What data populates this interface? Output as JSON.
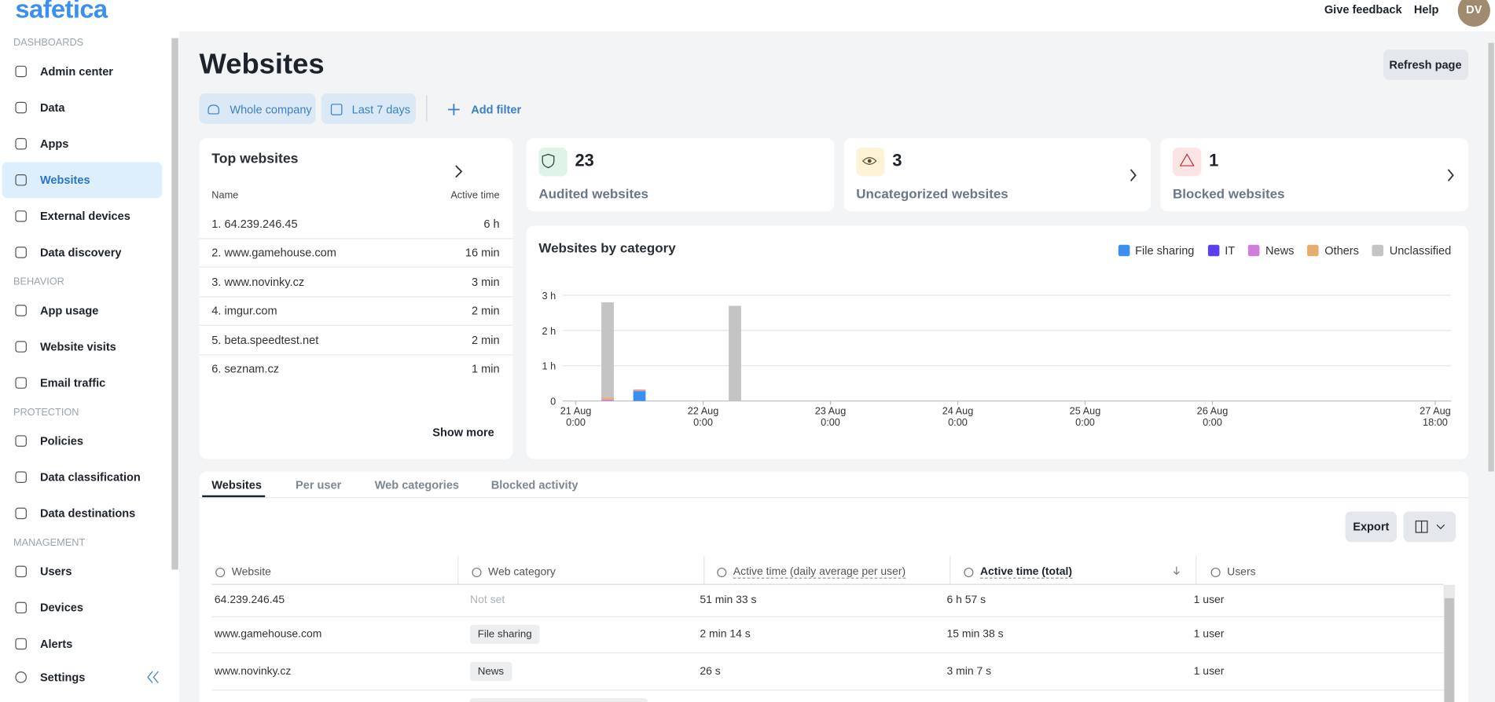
{
  "header": {
    "logo": "safetica",
    "links": [
      "Give feedback",
      "Help"
    ],
    "avatar": "DV"
  },
  "sidebar": {
    "sections": [
      {
        "title": "DASHBOARDS",
        "items": [
          "Admin center",
          "Data",
          "Apps",
          "Websites",
          "External devices",
          "Data discovery"
        ]
      },
      {
        "title": "BEHAVIOR",
        "items": [
          "App usage",
          "Website visits",
          "Email traffic"
        ]
      },
      {
        "title": "PROTECTION",
        "items": [
          "Policies",
          "Data classification",
          "Data destinations"
        ]
      },
      {
        "title": "MANAGEMENT",
        "items": [
          "Users",
          "Devices",
          "Alerts"
        ]
      }
    ],
    "active_item": [
      0,
      3
    ],
    "settings": "Settings"
  },
  "page": {
    "title": "Websites",
    "refresh": "Refresh page",
    "filters": [
      "Whole company",
      "Last 7 days"
    ],
    "add_filter": "Add filter"
  },
  "top_websites": {
    "title": "Top websites",
    "columns": [
      "Name",
      "Active time"
    ],
    "rows": [
      [
        "1. 64.239.246.45",
        "6 h"
      ],
      [
        "2. www.gamehouse.com",
        "16 min"
      ],
      [
        "3. www.novinky.cz",
        "3 min"
      ],
      [
        "4. imgur.com",
        "2 min"
      ],
      [
        "5. beta.speedtest.net",
        "2 min"
      ],
      [
        "6. seznam.cz",
        "1 min"
      ]
    ],
    "show_more": "Show more"
  },
  "stats": [
    {
      "value": 23,
      "label": "Audited websites",
      "tone": "green"
    },
    {
      "value": 3,
      "label": "Uncategorized websites",
      "tone": "yellow"
    },
    {
      "value": 1,
      "label": "Blocked websites",
      "tone": "red"
    }
  ],
  "chart_data": {
    "type": "bar",
    "stacked": true,
    "title": "Websites by category",
    "x": [
      "21 Aug 06:00",
      "21 Aug 12:00",
      "22 Aug 06:00"
    ],
    "series": [
      {
        "name": "File sharing",
        "color": "#3b8ff0",
        "values": [
          0,
          0.28,
          0
        ]
      },
      {
        "name": "IT",
        "color": "#5a3ff0",
        "values": [
          0,
          0,
          0
        ]
      },
      {
        "name": "News",
        "color": "#cf7fd8",
        "values": [
          0.04,
          0.02,
          0
        ]
      },
      {
        "name": "Others",
        "color": "#e5ae6e",
        "values": [
          0.06,
          0.03,
          0
        ]
      },
      {
        "name": "Unclassified",
        "color": "#c4c4c4",
        "values": [
          2.7,
          0,
          2.7
        ]
      }
    ],
    "xlim": [
      "20 Aug 21:30",
      "27 Aug 21:00"
    ],
    "xticks": [
      {
        "value": "21 Aug 00:00",
        "label": [
          "21 Aug",
          "0:00"
        ]
      },
      {
        "value": "22 Aug 00:00",
        "label": [
          "22 Aug",
          "0:00"
        ]
      },
      {
        "value": "23 Aug 00:00",
        "label": [
          "23 Aug",
          "0:00"
        ]
      },
      {
        "value": "24 Aug 00:00",
        "label": [
          "24 Aug",
          "0:00"
        ]
      },
      {
        "value": "25 Aug 00:00",
        "label": [
          "25 Aug",
          "0:00"
        ]
      },
      {
        "value": "26 Aug 00:00",
        "label": [
          "26 Aug",
          "0:00"
        ]
      },
      {
        "value": "27 Aug 18:00",
        "label": [
          "27 Aug",
          "18:00"
        ]
      }
    ],
    "ylim": [
      0,
      3
    ],
    "yticks": [
      0,
      {
        "value": 1,
        "label": "1 h"
      },
      {
        "value": 2,
        "label": "2 h"
      },
      {
        "value": 3,
        "label": "3 h"
      }
    ],
    "grid": true
  },
  "tabs": {
    "items": [
      "Websites",
      "Per user",
      "Web categories",
      "Blocked activity"
    ],
    "active": 0
  },
  "export": "Export",
  "table": {
    "columns": [
      "Website",
      "Web category",
      "Active time (daily average per user)",
      "Active time (total)",
      "Users"
    ],
    "sorted_column": 3,
    "rows": [
      {
        "cells": [
          "64.239.246.45",
          "Not set",
          "51 min 33 s",
          "6 h 57 s",
          "1 user"
        ],
        "category_set": false
      },
      {
        "cells": [
          "www.gamehouse.com",
          "File sharing",
          "2 min 14 s",
          "15 min 38 s",
          "1 user"
        ],
        "category_set": true
      },
      {
        "cells": [
          "www.novinky.cz",
          "News",
          "26 s",
          "3 min 7 s",
          "1 user"
        ],
        "category_set": true
      }
    ]
  }
}
